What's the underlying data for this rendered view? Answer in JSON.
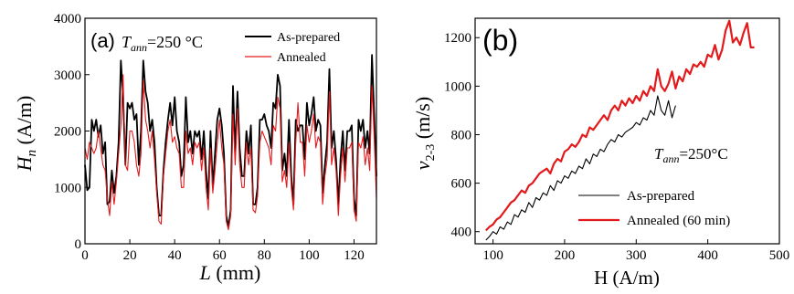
{
  "chart_data": [
    {
      "type": "line",
      "panel_label": "(a)",
      "annotation": {
        "main": "T",
        "sub": "ann",
        "rest": "=250 °C"
      },
      "xlabel": "L (mm)",
      "ylabel": "H_n (A/m)",
      "xlim": [
        0,
        130
      ],
      "ylim": [
        0,
        4000
      ],
      "xticks": [
        0,
        20,
        40,
        60,
        80,
        100,
        120
      ],
      "yticks": [
        0,
        1000,
        2000,
        3000,
        4000
      ],
      "legend_position": "top-right",
      "series": [
        {
          "name": "As-prepared",
          "color": "#000000",
          "x": [
            0,
            1,
            2,
            3,
            4,
            5,
            6,
            7,
            8,
            9,
            10,
            11,
            12,
            13,
            14,
            15,
            16,
            17,
            18,
            19,
            20,
            21,
            22,
            23,
            24,
            25,
            26,
            27,
            28,
            29,
            30,
            31,
            32,
            33,
            34,
            35,
            36,
            37,
            38,
            39,
            40,
            41,
            42,
            43,
            44,
            45,
            46,
            47,
            48,
            49,
            50,
            51,
            52,
            53,
            54,
            55,
            56,
            57,
            58,
            59,
            60,
            61,
            62,
            63,
            64,
            65,
            66,
            67,
            68,
            69,
            70,
            71,
            72,
            73,
            74,
            75,
            76,
            77,
            78,
            79,
            80,
            81,
            82,
            83,
            84,
            85,
            86,
            87,
            88,
            89,
            90,
            91,
            92,
            93,
            94,
            95,
            96,
            97,
            98,
            99,
            100,
            101,
            102,
            103,
            104,
            105,
            106,
            107,
            108,
            109,
            110,
            111,
            112,
            113,
            114,
            115,
            116,
            117,
            118,
            119,
            120,
            121,
            122,
            123,
            124,
            125,
            126,
            127,
            128,
            129,
            130
          ],
          "y": [
            1400,
            950,
            1000,
            2200,
            2000,
            2200,
            1900,
            2100,
            1600,
            1800,
            700,
            750,
            1300,
            900,
            1200,
            1800,
            3250,
            2600,
            1400,
            2500,
            2400,
            2500,
            2200,
            2300,
            1400,
            2000,
            3250,
            2700,
            2500,
            2000,
            2200,
            1800,
            1000,
            500,
            500,
            1300,
            1800,
            2200,
            2500,
            2100,
            2600,
            2000,
            1800,
            1200,
            1400,
            2600,
            1800,
            2000,
            1600,
            2000,
            1900,
            2000,
            1500,
            2000,
            1300,
            800,
            2000,
            1000,
            1600,
            2200,
            2400,
            2100,
            1600,
            500,
            300,
            600,
            2800,
            1600,
            2700,
            1700,
            1200,
            1200,
            2000,
            1600,
            2100,
            700,
            700,
            1000,
            2200,
            2200,
            2300,
            2100,
            2000,
            1700,
            2500,
            2400,
            3000,
            2800,
            1300,
            1600,
            1200,
            2200,
            1200,
            700,
            2200,
            2000,
            2100,
            2100,
            1500,
            2500,
            2100,
            2300,
            2600,
            2000,
            2200,
            2100,
            900,
            1400,
            1800,
            3100,
            1700,
            2000,
            1500,
            700,
            1500,
            2000,
            1300,
            2000,
            2000,
            2100,
            800,
            500,
            2200,
            2000,
            2200,
            1700,
            2000,
            1600,
            3350,
            2300,
            1200
          ]
        },
        {
          "name": "Annealed",
          "color": "#e31a1c",
          "x": [
            0,
            1,
            2,
            3,
            4,
            5,
            6,
            7,
            8,
            9,
            10,
            11,
            12,
            13,
            14,
            15,
            16,
            17,
            18,
            19,
            20,
            21,
            22,
            23,
            24,
            25,
            26,
            27,
            28,
            29,
            30,
            31,
            32,
            33,
            34,
            35,
            36,
            37,
            38,
            39,
            40,
            41,
            42,
            43,
            44,
            45,
            46,
            47,
            48,
            49,
            50,
            51,
            52,
            53,
            54,
            55,
            56,
            57,
            58,
            59,
            60,
            61,
            62,
            63,
            64,
            65,
            66,
            67,
            68,
            69,
            70,
            71,
            72,
            73,
            74,
            75,
            76,
            77,
            78,
            79,
            80,
            81,
            82,
            83,
            84,
            85,
            86,
            87,
            88,
            89,
            90,
            91,
            92,
            93,
            94,
            95,
            96,
            97,
            98,
            99,
            100,
            101,
            102,
            103,
            104,
            105,
            106,
            107,
            108,
            109,
            110,
            111,
            112,
            113,
            114,
            115,
            116,
            117,
            118,
            119,
            120,
            121,
            122,
            123,
            124,
            125,
            126,
            127,
            128,
            129,
            130
          ],
          "y": [
            1700,
            1500,
            1800,
            1700,
            1600,
            1700,
            2000,
            1700,
            1400,
            1300,
            800,
            500,
            1100,
            700,
            1100,
            1600,
            2100,
            3000,
            1400,
            1300,
            2000,
            2000,
            1800,
            1400,
            1200,
            1600,
            2900,
            2200,
            2000,
            1700,
            2000,
            1500,
            900,
            400,
            350,
            1200,
            1600,
            2000,
            2200,
            1800,
            1900,
            1700,
            1600,
            1000,
            1000,
            2000,
            1600,
            1700,
            1400,
            1800,
            1700,
            1800,
            1300,
            1700,
            1000,
            600,
            1700,
            900,
            1300,
            1800,
            2200,
            1700,
            1400,
            400,
            250,
            500,
            2300,
            1400,
            2400,
            1400,
            1000,
            1000,
            1800,
            1400,
            1700,
            600,
            550,
            850,
            1800,
            2000,
            1900,
            1800,
            1700,
            1400,
            2100,
            2000,
            2600,
            2400,
            1100,
            1300,
            1000,
            1800,
            1000,
            600,
            1800,
            2500,
            1800,
            1800,
            1200,
            2100,
            1800,
            2000,
            2300,
            1700,
            1900,
            1800,
            700,
            1200,
            1500,
            2700,
            1400,
            1700,
            1300,
            500,
            1200,
            1700,
            1100,
            1700,
            1700,
            1800,
            600,
            400,
            1800,
            1700,
            1900,
            1400,
            1700,
            1300,
            2800,
            1900,
            800
          ]
        }
      ]
    },
    {
      "type": "line",
      "panel_label": "(b)",
      "annotation": {
        "main": "T",
        "sub": "ann",
        "rest": "=250°C"
      },
      "xlabel": "H (A/m)",
      "ylabel": "v_2-3 (m/s)",
      "xlim": [
        75,
        500
      ],
      "ylim": [
        350,
        1280
      ],
      "xticks": [
        100,
        200,
        300,
        400,
        500
      ],
      "yticks": [
        400,
        600,
        800,
        1000,
        1200
      ],
      "legend_position": "bottom-right",
      "series": [
        {
          "name": "As-prepared",
          "color": "#000000",
          "x": [
            90,
            95,
            100,
            105,
            110,
            115,
            120,
            125,
            130,
            135,
            140,
            145,
            150,
            155,
            160,
            165,
            170,
            175,
            180,
            185,
            190,
            195,
            200,
            205,
            210,
            215,
            220,
            225,
            230,
            235,
            240,
            245,
            250,
            255,
            260,
            265,
            270,
            275,
            280,
            285,
            290,
            295,
            300,
            305,
            310,
            315,
            320,
            325,
            330,
            335,
            340,
            345,
            350,
            355
          ],
          "y": [
            365,
            380,
            400,
            390,
            420,
            410,
            440,
            430,
            470,
            460,
            490,
            480,
            520,
            500,
            540,
            530,
            560,
            550,
            590,
            570,
            610,
            600,
            630,
            620,
            650,
            640,
            670,
            660,
            700,
            680,
            720,
            710,
            740,
            730,
            760,
            780,
            770,
            800,
            790,
            810,
            820,
            830,
            850,
            840,
            870,
            860,
            900,
            880,
            960,
            900,
            880,
            940,
            870,
            920
          ]
        },
        {
          "name": "Annealed (60 min)",
          "color": "#e31a1c",
          "x": [
            90,
            95,
            100,
            105,
            110,
            115,
            120,
            125,
            130,
            135,
            140,
            145,
            150,
            155,
            160,
            165,
            170,
            175,
            180,
            185,
            190,
            195,
            200,
            205,
            210,
            215,
            220,
            225,
            230,
            235,
            240,
            245,
            250,
            255,
            260,
            265,
            270,
            275,
            280,
            285,
            290,
            295,
            300,
            305,
            310,
            315,
            320,
            325,
            330,
            335,
            340,
            345,
            350,
            355,
            360,
            365,
            370,
            375,
            380,
            385,
            390,
            395,
            400,
            405,
            410,
            415,
            420,
            425,
            430,
            435,
            440,
            445,
            450,
            455,
            460,
            465
          ],
          "y": [
            405,
            420,
            430,
            450,
            460,
            480,
            500,
            520,
            530,
            550,
            570,
            560,
            590,
            600,
            620,
            640,
            650,
            660,
            640,
            680,
            700,
            690,
            730,
            740,
            760,
            750,
            770,
            800,
            790,
            830,
            820,
            840,
            860,
            880,
            860,
            900,
            920,
            900,
            940,
            920,
            950,
            930,
            960,
            940,
            980,
            960,
            1000,
            980,
            1070,
            1000,
            980,
            1010,
            1060,
            990,
            1040,
            1020,
            1070,
            1050,
            1090,
            1080,
            1100,
            1080,
            1130,
            1120,
            1170,
            1110,
            1150,
            1230,
            1270,
            1180,
            1200,
            1170,
            1220,
            1260,
            1160,
            1160
          ]
        }
      ]
    }
  ]
}
